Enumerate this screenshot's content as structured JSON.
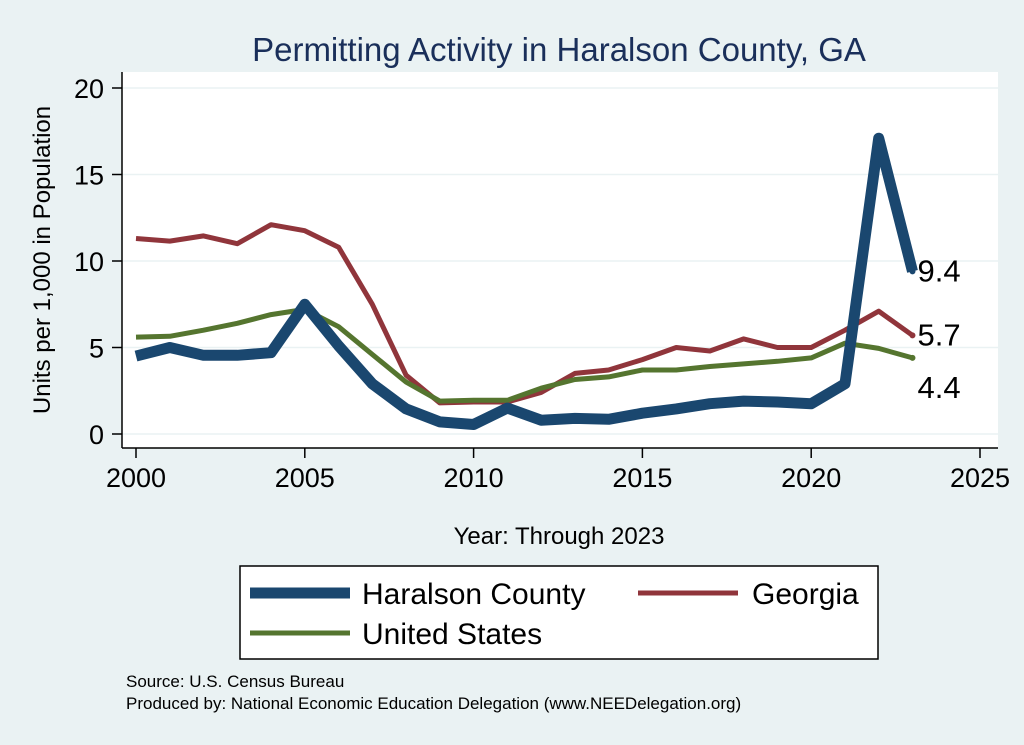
{
  "chart_data": {
    "type": "line",
    "title": "Permitting Activity in Haralson County, GA",
    "xlabel": "Year: Through 2023",
    "ylabel": "Units per 1,000 in Population",
    "xlim": [
      2000,
      2025
    ],
    "ylim": [
      0,
      20
    ],
    "x_ticks": [
      2000,
      2005,
      2010,
      2015,
      2020,
      2025
    ],
    "y_ticks": [
      0,
      5,
      10,
      15,
      20
    ],
    "grid": true,
    "x": [
      2000,
      2001,
      2002,
      2003,
      2004,
      2005,
      2006,
      2007,
      2008,
      2009,
      2010,
      2011,
      2012,
      2013,
      2014,
      2015,
      2016,
      2017,
      2018,
      2019,
      2020,
      2021,
      2022,
      2023
    ],
    "series": [
      {
        "name": "Haralson County",
        "color": "#1a476f",
        "values": [
          4.5,
          5.0,
          4.55,
          4.55,
          4.7,
          7.5,
          5.1,
          2.9,
          1.45,
          0.7,
          0.55,
          1.5,
          0.8,
          0.9,
          0.85,
          1.2,
          1.45,
          1.75,
          1.9,
          1.85,
          1.75,
          2.9,
          17.1,
          9.4
        ],
        "end_label": "9.4"
      },
      {
        "name": "Georgia",
        "color": "#90353b",
        "values": [
          11.3,
          11.15,
          11.45,
          11.0,
          12.1,
          11.75,
          10.8,
          7.5,
          3.4,
          1.8,
          1.85,
          1.85,
          2.4,
          3.5,
          3.7,
          4.3,
          5.0,
          4.8,
          5.5,
          5.0,
          5.0,
          6.0,
          7.1,
          5.7
        ],
        "end_label": "5.7"
      },
      {
        "name": "United States",
        "color": "#55752f",
        "values": [
          5.6,
          5.65,
          6.0,
          6.4,
          6.9,
          7.2,
          6.2,
          4.6,
          3.0,
          1.9,
          1.95,
          1.95,
          2.65,
          3.15,
          3.3,
          3.7,
          3.7,
          3.9,
          4.05,
          4.2,
          4.4,
          5.25,
          4.95,
          4.4
        ],
        "end_label": "4.4"
      }
    ],
    "legend": {
      "placement": "bottom",
      "entries": [
        "Haralson County",
        "Georgia",
        "United States"
      ]
    }
  },
  "footer": {
    "source": "Source: U.S. Census Bureau",
    "produced_by": "Produced by: National Economic Education Delegation (www.NEEDelegation.org)"
  },
  "colors": {
    "background": "#eaf2f3",
    "plot_background": "#ffffff",
    "grid": "#eaf2f3",
    "title": "#1a2f5a"
  }
}
